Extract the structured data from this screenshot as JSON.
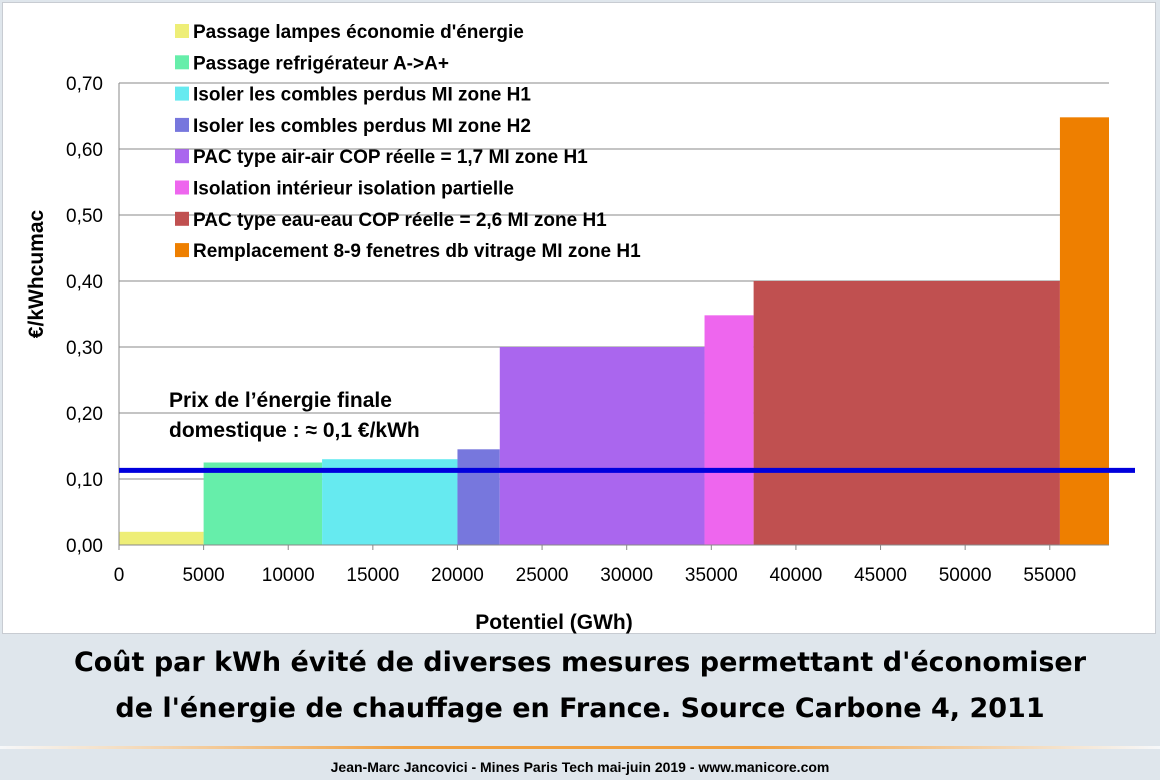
{
  "chart_data": {
    "type": "bar",
    "subtype": "variable-width cost curve",
    "xlabel": "Potentiel (GWh)",
    "ylabel": "€/kWhcumac",
    "xlim": [
      0,
      58500
    ],
    "ylim": [
      0,
      0.7
    ],
    "xticks": [
      "0",
      "5000",
      "10000",
      "15000",
      "20000",
      "25000",
      "30000",
      "35000",
      "40000",
      "45000",
      "50000",
      "55000"
    ],
    "yticks": [
      "0,00",
      "0,10",
      "0,20",
      "0,30",
      "0,40",
      "0,50",
      "0,60",
      "0,70"
    ],
    "grid": "horizontal",
    "legend_position": "top-left",
    "series": [
      {
        "name": "Passage lampes économie d'énergie",
        "x_start": 0,
        "x_end": 5000,
        "value": 0.02,
        "color": "#eeee77"
      },
      {
        "name": "Passage refrigérateur A->A+",
        "x_start": 5000,
        "x_end": 12000,
        "value": 0.125,
        "color": "#66eeaa"
      },
      {
        "name": "Isoler les combles perdus MI zone H1",
        "x_start": 12000,
        "x_end": 20000,
        "value": 0.13,
        "color": "#66eaf0"
      },
      {
        "name": "Isoler les combles perdus MI zone H2",
        "x_start": 20000,
        "x_end": 22500,
        "value": 0.145,
        "color": "#7777dd"
      },
      {
        "name": "PAC type air-air COP réelle = 1,7 MI zone H1",
        "x_start": 22500,
        "x_end": 34600,
        "value": 0.3,
        "color": "#aa66ee"
      },
      {
        "name": "Isolation intérieur  isolation partielle",
        "x_start": 34600,
        "x_end": 37500,
        "value": 0.348,
        "color": "#ee66ee"
      },
      {
        "name": "PAC type eau-eau COP réelle = 2,6 MI zone H1",
        "x_start": 37500,
        "x_end": 55600,
        "value": 0.4,
        "color": "#c05050"
      },
      {
        "name": "Remplacement 8-9 fenetres db vitrage MI zone H1",
        "x_start": 55600,
        "x_end": 58500,
        "value": 0.648,
        "color": "#ee7f00"
      }
    ],
    "reference_line": {
      "value": 0.113,
      "color": "#0000dd"
    },
    "annotation": [
      "Prix de l’énergie finale",
      "domestique : ≈ 0,1 €/kWh"
    ]
  },
  "caption": [
    "Coût par kWh évité de diverses mesures permettant d'économiser",
    "de l'énergie de chauffage en France. Source Carbone 4, 2011"
  ],
  "footer": "Jean-Marc Jancovici - Mines Paris Tech mai-juin 2019 - www.manicore.com"
}
